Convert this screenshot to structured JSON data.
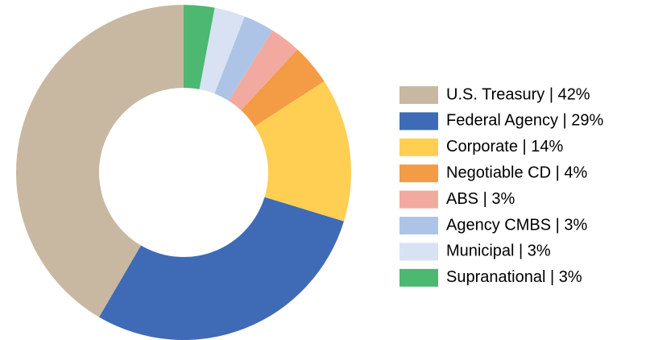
{
  "chart_data": {
    "type": "pie",
    "categories": [
      "U.S. Treasury | 42%",
      "Federal Agency | 29%",
      "Corporate | 14%",
      "Negotiable CD | 4%",
      "ABS | 3%",
      "Agency CMBS | 3%",
      "Municipal | 3%",
      "Supranational | 3%"
    ],
    "values": [
      42,
      29,
      14,
      4,
      3,
      3,
      3,
      3
    ],
    "colors": [
      "#c8b8a2",
      "#3f6bb6",
      "#ffcf54",
      "#f39b45",
      "#f2aaa0",
      "#aec4e6",
      "#d8e2f2",
      "#4cb872"
    ],
    "donut": true
  }
}
